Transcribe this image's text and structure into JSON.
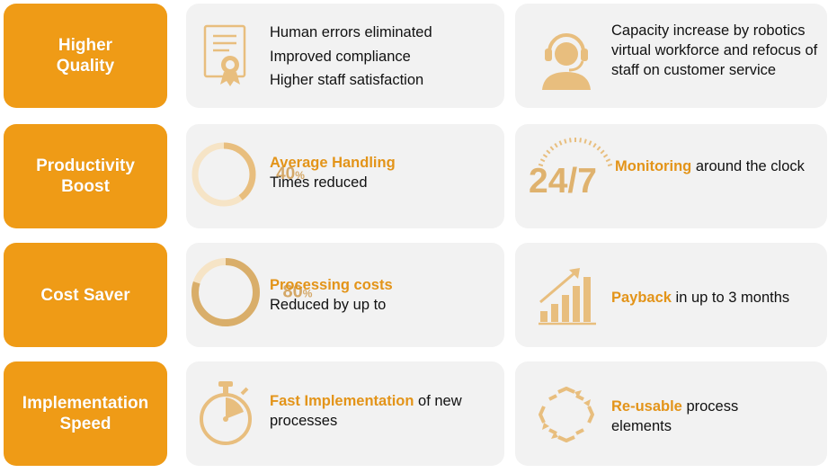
{
  "colors": {
    "accent": "#EF9B16",
    "card": "#F2F2F2",
    "highlight": "#E39419",
    "icon": "#E8BE7E"
  },
  "rows": [
    {
      "label": "Higher\nQuality",
      "left": {
        "icon": "certificate-icon",
        "items": [
          "Human errors eliminated",
          "Improved compliance",
          "Higher staff satisfaction"
        ]
      },
      "right": {
        "icon": "headset-agent-icon",
        "text": "Capacity increase by robotics virtual workforce and refocus of staff on customer service"
      }
    },
    {
      "label": "Productivity\nBoost",
      "left": {
        "icon": "progress-ring-icon",
        "value": "40",
        "unit": "%",
        "progress": 0.4,
        "highlight": "Average Handling",
        "text": "Times reduced"
      },
      "right": {
        "icon": "clock-24-7-icon",
        "value": "24/7",
        "highlight": "Monitoring",
        "text": " around the clock"
      }
    },
    {
      "label": "Cost Saver",
      "left": {
        "icon": "progress-ring-icon",
        "value": "80",
        "unit": "%",
        "progress": 0.8,
        "highlight": "Processing costs",
        "text": "Reduced by up to"
      },
      "right": {
        "icon": "bar-growth-icon",
        "highlight": "Payback",
        "text": " in up to 3 months"
      }
    },
    {
      "label": "Implementation\nSpeed",
      "left": {
        "icon": "stopwatch-icon",
        "highlight": "Fast Implementation",
        "text": " of new processes"
      },
      "right": {
        "icon": "recycle-arrows-icon",
        "highlight": "Re-usable",
        "text": " process elements"
      }
    }
  ]
}
